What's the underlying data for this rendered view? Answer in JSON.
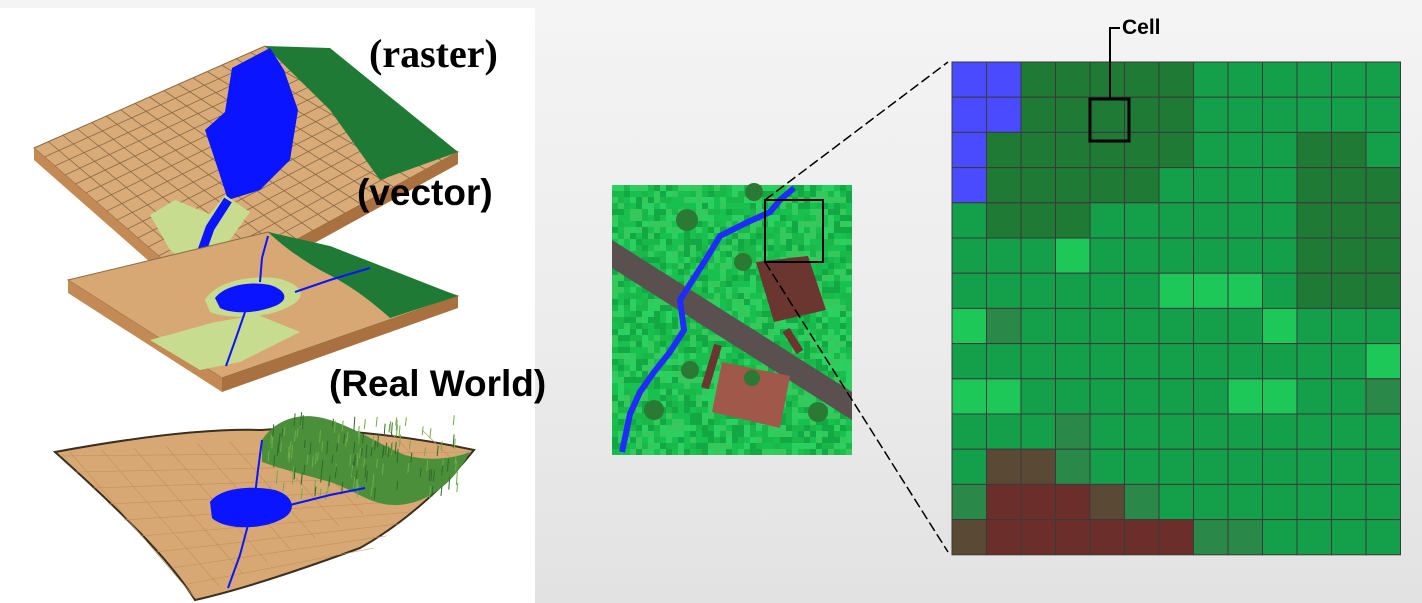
{
  "labels": {
    "raster": "(raster)",
    "vector": "(vector)",
    "real_world": "(Real World)",
    "cell": "Cell"
  },
  "colors": {
    "water": "#0a14ff",
    "forest": "#1f7a35",
    "land": "#d7a874",
    "field": "#c4d98c",
    "building": "#6b3530",
    "road": "#555050",
    "grass": "#18c050"
  }
}
